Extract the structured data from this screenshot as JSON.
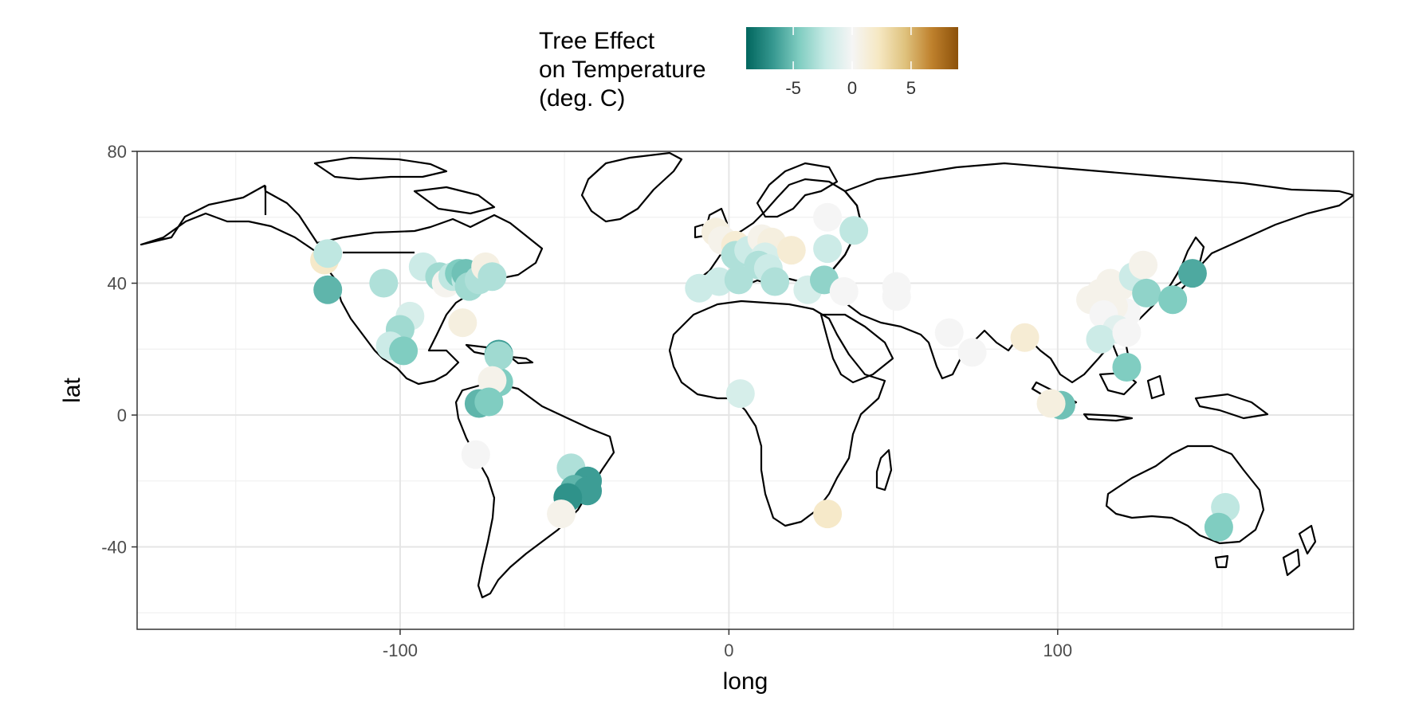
{
  "chart_data": {
    "type": "scatter",
    "xlabel": "long",
    "ylabel": "lat",
    "xlim": [
      -180,
      190
    ],
    "ylim": [
      -65,
      80
    ],
    "x_ticks": [
      -100,
      0,
      100
    ],
    "y_ticks": [
      80,
      40,
      0,
      -40
    ],
    "x_tick_labels": [
      "-100",
      "0",
      "100"
    ],
    "y_tick_labels": [
      "80",
      "40",
      "0",
      "-40"
    ],
    "grid": true,
    "legend": {
      "title_lines": [
        "Tree Effect",
        "on Temperature",
        "(deg. C)"
      ],
      "placement": "top",
      "range": [
        -9,
        9
      ],
      "ticks": [
        -5,
        0,
        5
      ],
      "tick_labels": [
        "-5",
        "0",
        "5"
      ],
      "palette": [
        "#01665e",
        "#35978f",
        "#80cdc1",
        "#c7eae5",
        "#f5f5f5",
        "#f6e8c3",
        "#dfc27d",
        "#bf812d",
        "#8c510a"
      ]
    },
    "points": [
      {
        "long": -123,
        "lat": 47,
        "value": 2
      },
      {
        "long": -122,
        "lat": 49,
        "value": -2.5
      },
      {
        "long": -122,
        "lat": 38,
        "value": -5.5
      },
      {
        "long": -105,
        "lat": 40,
        "value": -3
      },
      {
        "long": -93,
        "lat": 45,
        "value": -2
      },
      {
        "long": -88,
        "lat": 42,
        "value": -3.5
      },
      {
        "long": -86,
        "lat": 40,
        "value": 0.3
      },
      {
        "long": -84,
        "lat": 42,
        "value": -2.5
      },
      {
        "long": -82,
        "lat": 43,
        "value": -4.5
      },
      {
        "long": -80,
        "lat": 41,
        "value": -2.5
      },
      {
        "long": -80,
        "lat": 43,
        "value": -5
      },
      {
        "long": -79,
        "lat": 39,
        "value": -3.5
      },
      {
        "long": -76,
        "lat": 41,
        "value": -3
      },
      {
        "long": -74,
        "lat": 45,
        "value": 0.8
      },
      {
        "long": -72,
        "lat": 42,
        "value": -3
      },
      {
        "long": -97,
        "lat": 30,
        "value": -1.5
      },
      {
        "long": -100,
        "lat": 26,
        "value": -3.5
      },
      {
        "long": -103,
        "lat": 21,
        "value": -2
      },
      {
        "long": -99,
        "lat": 19.5,
        "value": -4.5
      },
      {
        "long": -81,
        "lat": 28,
        "value": 1
      },
      {
        "long": -70,
        "lat": 18.5,
        "value": -6.5
      },
      {
        "long": -70,
        "lat": 10,
        "value": -4.5
      },
      {
        "long": -70,
        "lat": 18,
        "value": -3.5
      },
      {
        "long": -72,
        "lat": 10.5,
        "value": 0.5
      },
      {
        "long": -76,
        "lat": 3.5,
        "value": -5.5
      },
      {
        "long": -73,
        "lat": 4,
        "value": -4.5
      },
      {
        "long": -77,
        "lat": -12,
        "value": 0
      },
      {
        "long": -48,
        "lat": -16,
        "value": -3
      },
      {
        "long": -43,
        "lat": -20,
        "value": -6.5
      },
      {
        "long": -47,
        "lat": -22.5,
        "value": -5.5
      },
      {
        "long": -43,
        "lat": -23,
        "value": -6.5
      },
      {
        "long": -49,
        "lat": -25,
        "value": -7
      },
      {
        "long": -51,
        "lat": -30,
        "value": 0.5
      },
      {
        "long": -4,
        "lat": 55.5,
        "value": 1
      },
      {
        "long": -2,
        "lat": 53,
        "value": 0.5
      },
      {
        "long": 2,
        "lat": 51.5,
        "value": 1.5
      },
      {
        "long": -9,
        "lat": 38.5,
        "value": -2
      },
      {
        "long": -3,
        "lat": 40.5,
        "value": -2
      },
      {
        "long": 3,
        "lat": 41,
        "value": -3
      },
      {
        "long": 2,
        "lat": 48.5,
        "value": -3
      },
      {
        "long": 6,
        "lat": 50,
        "value": -2
      },
      {
        "long": 10,
        "lat": 53.5,
        "value": 0.5
      },
      {
        "long": 13,
        "lat": 52.5,
        "value": 1
      },
      {
        "long": 11,
        "lat": 48,
        "value": -1.5
      },
      {
        "long": 9,
        "lat": 45.5,
        "value": -3
      },
      {
        "long": 12,
        "lat": 44.5,
        "value": -2
      },
      {
        "long": 14,
        "lat": 40.5,
        "value": -3
      },
      {
        "long": 19,
        "lat": 50,
        "value": 1.5
      },
      {
        "long": 24,
        "lat": 38,
        "value": -1.5
      },
      {
        "long": 29,
        "lat": 41,
        "value": -4
      },
      {
        "long": 30,
        "lat": 50.5,
        "value": -2
      },
      {
        "long": 30,
        "lat": 60,
        "value": 0
      },
      {
        "long": 38,
        "lat": 56,
        "value": -2.5
      },
      {
        "long": 35,
        "lat": 37.5,
        "value": 0
      },
      {
        "long": 51,
        "lat": 39,
        "value": 0
      },
      {
        "long": 51,
        "lat": 36,
        "value": 0
      },
      {
        "long": 3.5,
        "lat": 6.5,
        "value": -1.5
      },
      {
        "long": 30,
        "lat": -30,
        "value": 2
      },
      {
        "long": 67,
        "lat": 25,
        "value": 0
      },
      {
        "long": 74,
        "lat": 19,
        "value": 0
      },
      {
        "long": 90,
        "lat": 23.5,
        "value": 1.5
      },
      {
        "long": 101,
        "lat": 3,
        "value": -5
      },
      {
        "long": 98,
        "lat": 3.5,
        "value": 1
      },
      {
        "long": 110,
        "lat": 35,
        "value": 0.5
      },
      {
        "long": 113,
        "lat": 37,
        "value": 0.5
      },
      {
        "long": 116,
        "lat": 40,
        "value": 0.5
      },
      {
        "long": 119,
        "lat": 39,
        "value": 0.5
      },
      {
        "long": 121,
        "lat": 31,
        "value": 0
      },
      {
        "long": 117,
        "lat": 33,
        "value": 0.5
      },
      {
        "long": 114,
        "lat": 30.5,
        "value": 0
      },
      {
        "long": 118,
        "lat": 26,
        "value": -1
      },
      {
        "long": 113,
        "lat": 23,
        "value": -2
      },
      {
        "long": 121,
        "lat": 25,
        "value": 0
      },
      {
        "long": 123,
        "lat": 42,
        "value": -2
      },
      {
        "long": 126,
        "lat": 45.5,
        "value": 0.5
      },
      {
        "long": 127,
        "lat": 37,
        "value": -4
      },
      {
        "long": 121,
        "lat": 14.5,
        "value": -4.5
      },
      {
        "long": 135,
        "lat": 35,
        "value": -4.5
      },
      {
        "long": 141,
        "lat": 43,
        "value": -6
      },
      {
        "long": 151,
        "lat": -28,
        "value": -2.5
      },
      {
        "long": 149,
        "lat": -34,
        "value": -4.5
      }
    ]
  }
}
